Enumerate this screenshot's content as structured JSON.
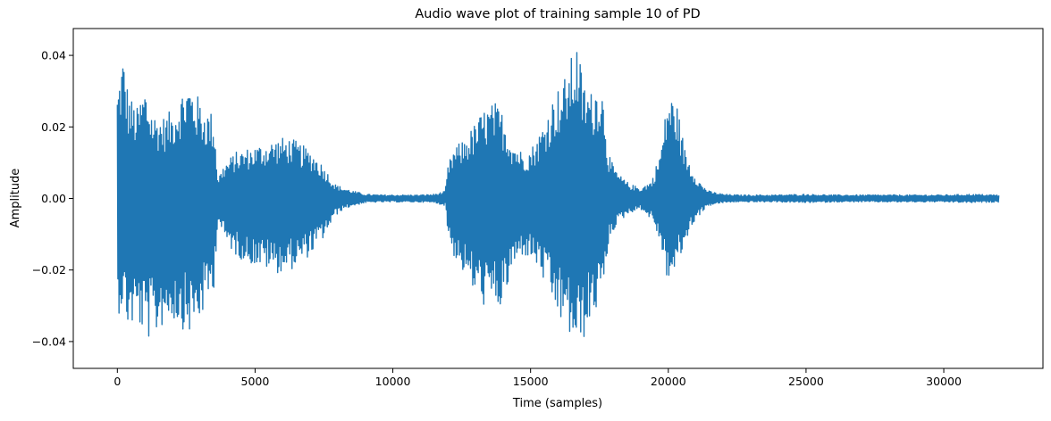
{
  "chart_data": {
    "type": "line",
    "title": "Audio wave plot of training sample 10 of PD",
    "xlabel": "Time (samples)",
    "ylabel": "Amplitude",
    "xlim": [
      -1600,
      33600
    ],
    "ylim": [
      -0.0475,
      0.0475
    ],
    "xticks": [
      0,
      5000,
      10000,
      15000,
      20000,
      25000,
      30000
    ],
    "xtick_labels": [
      "0",
      "5000",
      "10000",
      "15000",
      "20000",
      "25000",
      "30000"
    ],
    "yticks": [
      -0.04,
      -0.02,
      0.0,
      0.02,
      0.04
    ],
    "ytick_labels": [
      "−0.04",
      "−0.02",
      "0.00",
      "0.02",
      "0.04"
    ],
    "grid": false,
    "color": "#1f77b4",
    "series": [
      {
        "n_samples": 32000,
        "envelope_upper": {
          "x": [
            0,
            200,
            400,
            700,
            1000,
            1300,
            1700,
            2000,
            2300,
            2600,
            2900,
            3200,
            3500,
            3650,
            3900,
            4300,
            4700,
            5100,
            5500,
            5900,
            6300,
            6700,
            7100,
            7500,
            7900,
            8200,
            8600,
            9000,
            9500,
            10000,
            10500,
            11000,
            11500,
            11900,
            12000,
            12200,
            12500,
            12900,
            13300,
            13700,
            14000,
            14300,
            14700,
            15000,
            15300,
            15600,
            15900,
            16200,
            16500,
            16700,
            16900,
            17200,
            17500,
            17700,
            17800,
            18000,
            18300,
            18600,
            19000,
            19400,
            19700,
            19800,
            20000,
            20300,
            20600,
            20900,
            21200,
            21500,
            21800,
            22000,
            22500,
            23000,
            24000,
            25000,
            26000,
            27000,
            28000,
            29000,
            30000,
            31000,
            32000
          ],
          "y": [
            0.031,
            0.041,
            0.03,
            0.025,
            0.032,
            0.024,
            0.023,
            0.025,
            0.03,
            0.033,
            0.029,
            0.025,
            0.024,
            0.006,
            0.01,
            0.013,
            0.014,
            0.015,
            0.016,
            0.017,
            0.017,
            0.015,
            0.013,
            0.009,
            0.004,
            0.003,
            0.002,
            0.0012,
            0.001,
            0.001,
            0.001,
            0.001,
            0.0012,
            0.002,
            0.009,
            0.014,
            0.016,
            0.02,
            0.025,
            0.027,
            0.024,
            0.017,
            0.013,
            0.014,
            0.018,
            0.024,
            0.03,
            0.033,
            0.04,
            0.044,
            0.033,
            0.03,
            0.034,
            0.027,
            0.014,
            0.009,
            0.006,
            0.004,
            0.003,
            0.005,
            0.013,
            0.018,
            0.03,
            0.027,
            0.014,
            0.008,
            0.004,
            0.002,
            0.0015,
            0.0012,
            0.001,
            0.001,
            0.001,
            0.0012,
            0.001,
            0.001,
            0.001,
            0.001,
            0.001,
            0.0012,
            0.001
          ]
        },
        "envelope_lower": {
          "x": [
            0,
            200,
            400,
            700,
            1000,
            1300,
            1700,
            2000,
            2300,
            2600,
            2900,
            3200,
            3500,
            3650,
            3900,
            4300,
            4700,
            5100,
            5500,
            5900,
            6300,
            6700,
            7100,
            7500,
            7900,
            8200,
            8600,
            9000,
            9500,
            10000,
            10500,
            11000,
            11500,
            11900,
            12000,
            12200,
            12500,
            12900,
            13300,
            13700,
            14000,
            14300,
            14700,
            15000,
            15300,
            15600,
            15900,
            16200,
            16500,
            16700,
            16900,
            17200,
            17500,
            17700,
            17800,
            18000,
            18300,
            18600,
            19000,
            19400,
            19700,
            19800,
            20000,
            20300,
            20600,
            20900,
            21200,
            21500,
            21800,
            22000,
            22500,
            23000,
            24000,
            25000,
            26000,
            27000,
            28000,
            29000,
            30000,
            31000,
            32000
          ],
          "y": [
            -0.033,
            -0.03,
            -0.037,
            -0.035,
            -0.039,
            -0.04,
            -0.035,
            -0.034,
            -0.036,
            -0.038,
            -0.036,
            -0.031,
            -0.025,
            -0.006,
            -0.012,
            -0.016,
            -0.018,
            -0.019,
            -0.02,
            -0.021,
            -0.02,
            -0.018,
            -0.015,
            -0.011,
            -0.005,
            -0.003,
            -0.002,
            -0.0012,
            -0.001,
            -0.001,
            -0.001,
            -0.001,
            -0.0012,
            -0.002,
            -0.01,
            -0.016,
            -0.02,
            -0.026,
            -0.03,
            -0.031,
            -0.031,
            -0.021,
            -0.016,
            -0.017,
            -0.02,
            -0.026,
            -0.032,
            -0.036,
            -0.04,
            -0.043,
            -0.04,
            -0.035,
            -0.029,
            -0.025,
            -0.014,
            -0.009,
            -0.006,
            -0.004,
            -0.003,
            -0.006,
            -0.012,
            -0.017,
            -0.024,
            -0.02,
            -0.013,
            -0.007,
            -0.004,
            -0.002,
            -0.0015,
            -0.0012,
            -0.001,
            -0.001,
            -0.001,
            -0.0012,
            -0.001,
            -0.001,
            -0.001,
            -0.001,
            -0.001,
            -0.0012,
            -0.001
          ]
        }
      }
    ]
  }
}
